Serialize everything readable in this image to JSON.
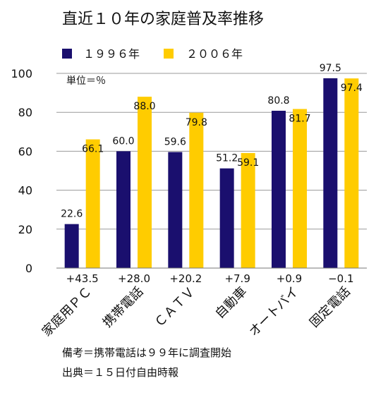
{
  "chart_data": {
    "type": "bar",
    "title": "直近１０年の家庭普及率推移",
    "unit_label": "単位＝％",
    "categories": [
      "家庭用ＰＣ",
      "携帯電話",
      "ＣＡＴＶ",
      "自動車",
      "オートバイ",
      "固定電話"
    ],
    "series": [
      {
        "name": "１９９６年",
        "color": "#1a0f6e",
        "values": [
          22.6,
          60.0,
          59.6,
          51.2,
          80.8,
          97.5
        ],
        "labels": [
          "22.6",
          "60.0",
          "59.6",
          "51.2",
          "80.8",
          "97.5"
        ]
      },
      {
        "name": "２００６年",
        "color": "#ffcc00",
        "values": [
          66.1,
          88.0,
          79.8,
          59.1,
          81.7,
          97.4
        ],
        "labels": [
          "66.1",
          "88.0",
          "79.8",
          "59.1",
          "81.7",
          "97.4"
        ]
      }
    ],
    "differences": [
      "+43.5",
      "+28.0",
      "+20.2",
      "+7.9",
      "+0.9",
      "−0.1"
    ],
    "ylim": [
      0,
      100
    ],
    "yticks": [
      0,
      20,
      40,
      60,
      80,
      100
    ],
    "grid": true,
    "legend_position": "top"
  },
  "notes": {
    "remark": "備考＝携帯電話は９９年に調査開始",
    "source": "出典＝１５日付自由時報"
  }
}
